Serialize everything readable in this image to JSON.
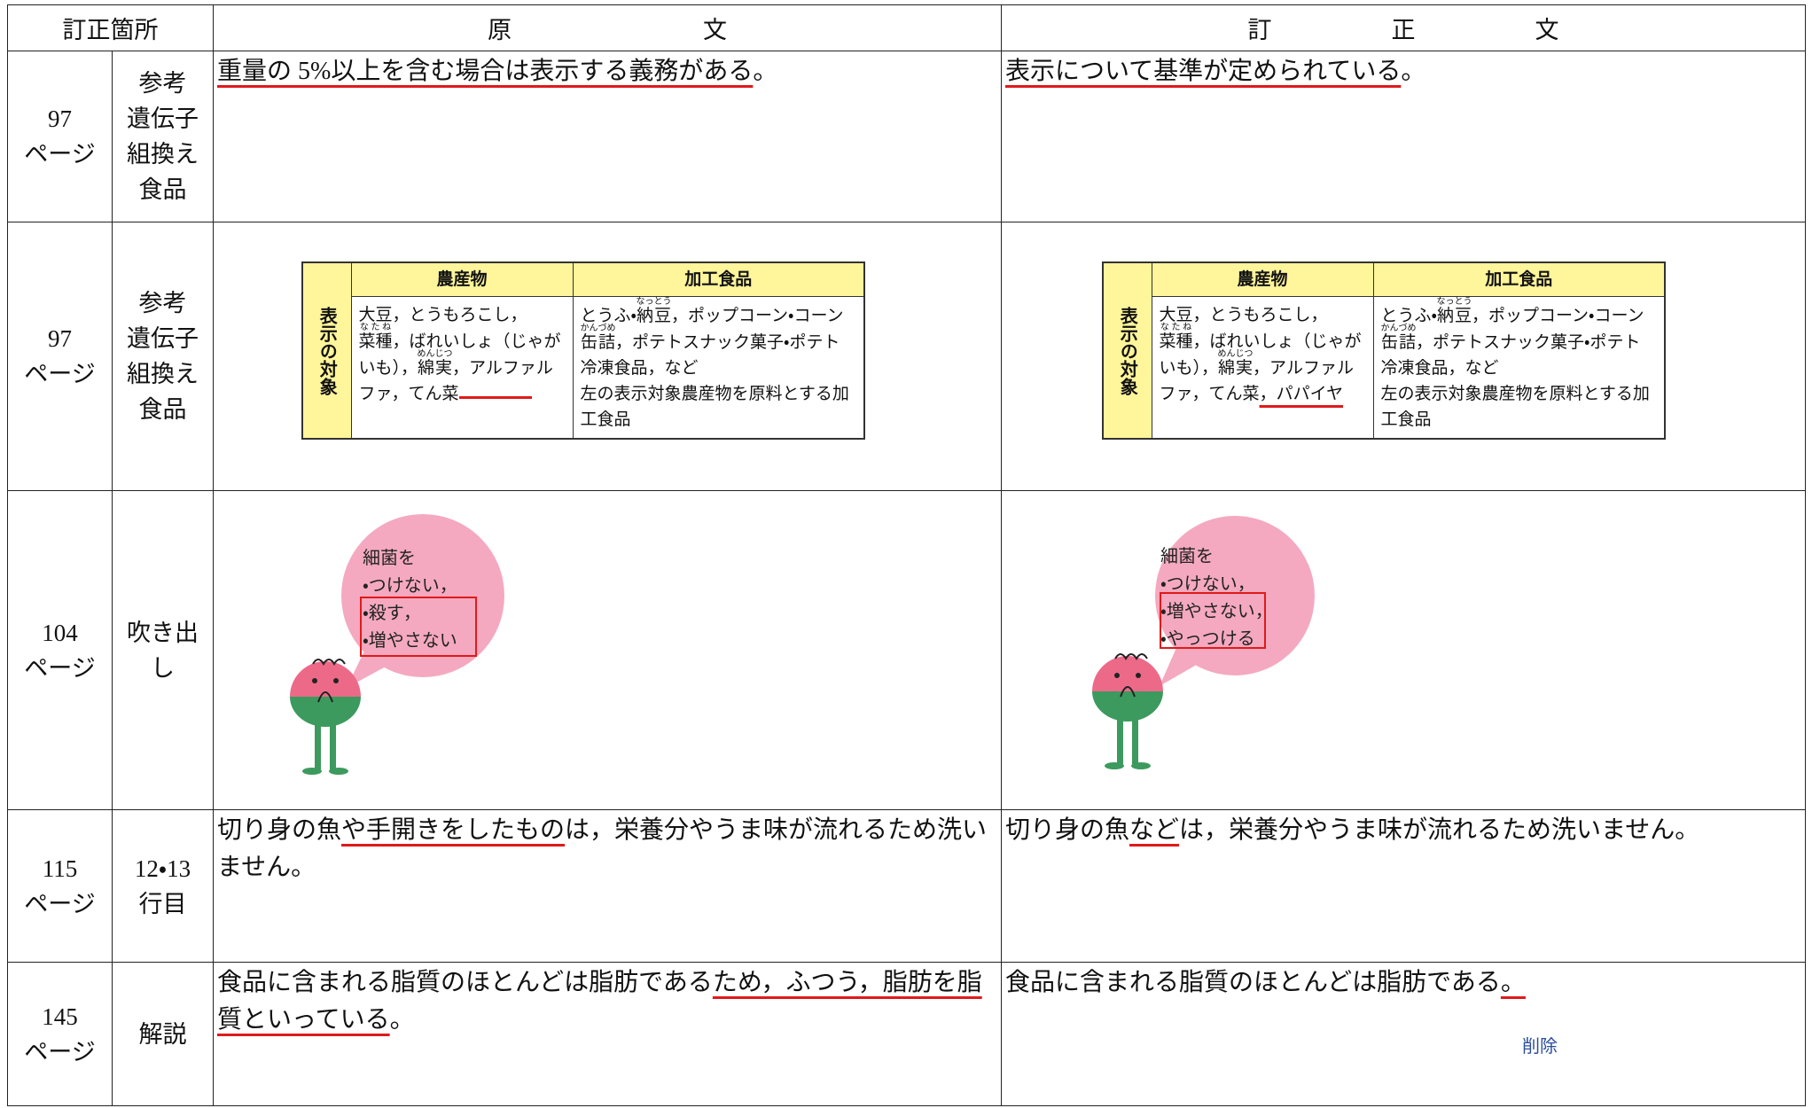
{
  "header": {
    "location": "訂正箇所",
    "original": "原　　　　　　　　文",
    "corrected": "訂　　　　　正　　　　　文"
  },
  "rows": [
    {
      "page": "97",
      "page_unit": "ページ",
      "location": "参考\n遺伝子\n組換え\n食品",
      "original": [
        {
          "text": "重量の 5%以上を含む場合は表示する義務がある",
          "underline": true
        },
        {
          "text": "。"
        }
      ],
      "corrected": [
        {
          "text": "表示について基準が定められている",
          "underline": true
        },
        {
          "text": "。"
        }
      ]
    },
    {
      "page": "97",
      "page_unit": "ページ",
      "location": "参考\n遺伝子\n組換え\n食品",
      "original": {
        "side_label": "表示の対象",
        "headers": [
          "農産物",
          "加工食品"
        ],
        "crops": [
          {
            "text": "大豆，とうもろこし，"
          },
          {
            "text": "菜種",
            "ruby": "なたね"
          },
          {
            "text": "，ばれいしょ（じゃがいも），"
          },
          {
            "text": "綿実",
            "ruby": "めんじつ"
          },
          {
            "text": "，アルファルファ，てん菜"
          }
        ],
        "processed": [
          {
            "text": "とうふ・"
          },
          {
            "text": "納豆",
            "ruby": "なっとう"
          },
          {
            "text": "，ポップコーン・コーン"
          },
          {
            "text": "缶詰",
            "ruby": "かんづめ"
          },
          {
            "text": "，ポテトスナック菓子・ポテト冷凍食品，など"
          }
        ],
        "processed_note": "左の表示対象農産物を原料とする加工食品"
      },
      "corrected": {
        "side_label": "表示の対象",
        "headers": [
          "農産物",
          "加工食品"
        ],
        "crops": [
          {
            "text": "大豆，とうもろこし，"
          },
          {
            "text": "菜種",
            "ruby": "なたね"
          },
          {
            "text": "，ばれいしょ（じゃがいも），"
          },
          {
            "text": "綿実",
            "ruby": "めんじつ"
          },
          {
            "text": "，アルファルファ，てん菜"
          },
          {
            "text": "，パパイヤ",
            "underline": true
          }
        ],
        "processed": [
          {
            "text": "とうふ・"
          },
          {
            "text": "納豆",
            "ruby": "なっとう"
          },
          {
            "text": "，ポップコーン・コーン"
          },
          {
            "text": "缶詰",
            "ruby": "かんづめ"
          },
          {
            "text": "，ポテトスナック菓子・ポテト冷凍食品，など"
          }
        ],
        "processed_note": "左の表示対象農産物を原料とする加工食品"
      }
    },
    {
      "page": "104",
      "page_unit": "ページ",
      "location": "吹き出\nし",
      "original": {
        "lines": [
          "細菌を",
          "・つけない，",
          "・殺す，",
          "・増やさない"
        ]
      },
      "corrected": {
        "lines": [
          "細菌を",
          "・つけない，",
          "・増やさない，",
          "・やっつける"
        ]
      }
    },
    {
      "page": "115",
      "page_unit": "ページ",
      "location": "12・13\n行目",
      "original": [
        {
          "text": "切り身の魚"
        },
        {
          "text": "や手開きをしたもの",
          "underline": true
        },
        {
          "text": "は，栄養分やうま味が流れるため洗いません。"
        }
      ],
      "corrected": [
        {
          "text": "切り身の魚"
        },
        {
          "text": "など",
          "underline": true
        },
        {
          "text": "は，栄養分やうま味が流れるため洗いません。"
        }
      ]
    },
    {
      "page": "145",
      "page_unit": "ページ",
      "location": "解説",
      "original": [
        {
          "text": "食品に含まれる脂質のほとんどは脂肪である"
        },
        {
          "text": "ため，ふつう，脂肪を脂質といっている",
          "underline": true
        },
        {
          "text": "。"
        }
      ],
      "corrected": [
        {
          "text": "食品に含まれる脂質のほとんどは脂肪である"
        },
        {
          "text": "。",
          "underline": true
        }
      ],
      "note": "削除"
    }
  ]
}
